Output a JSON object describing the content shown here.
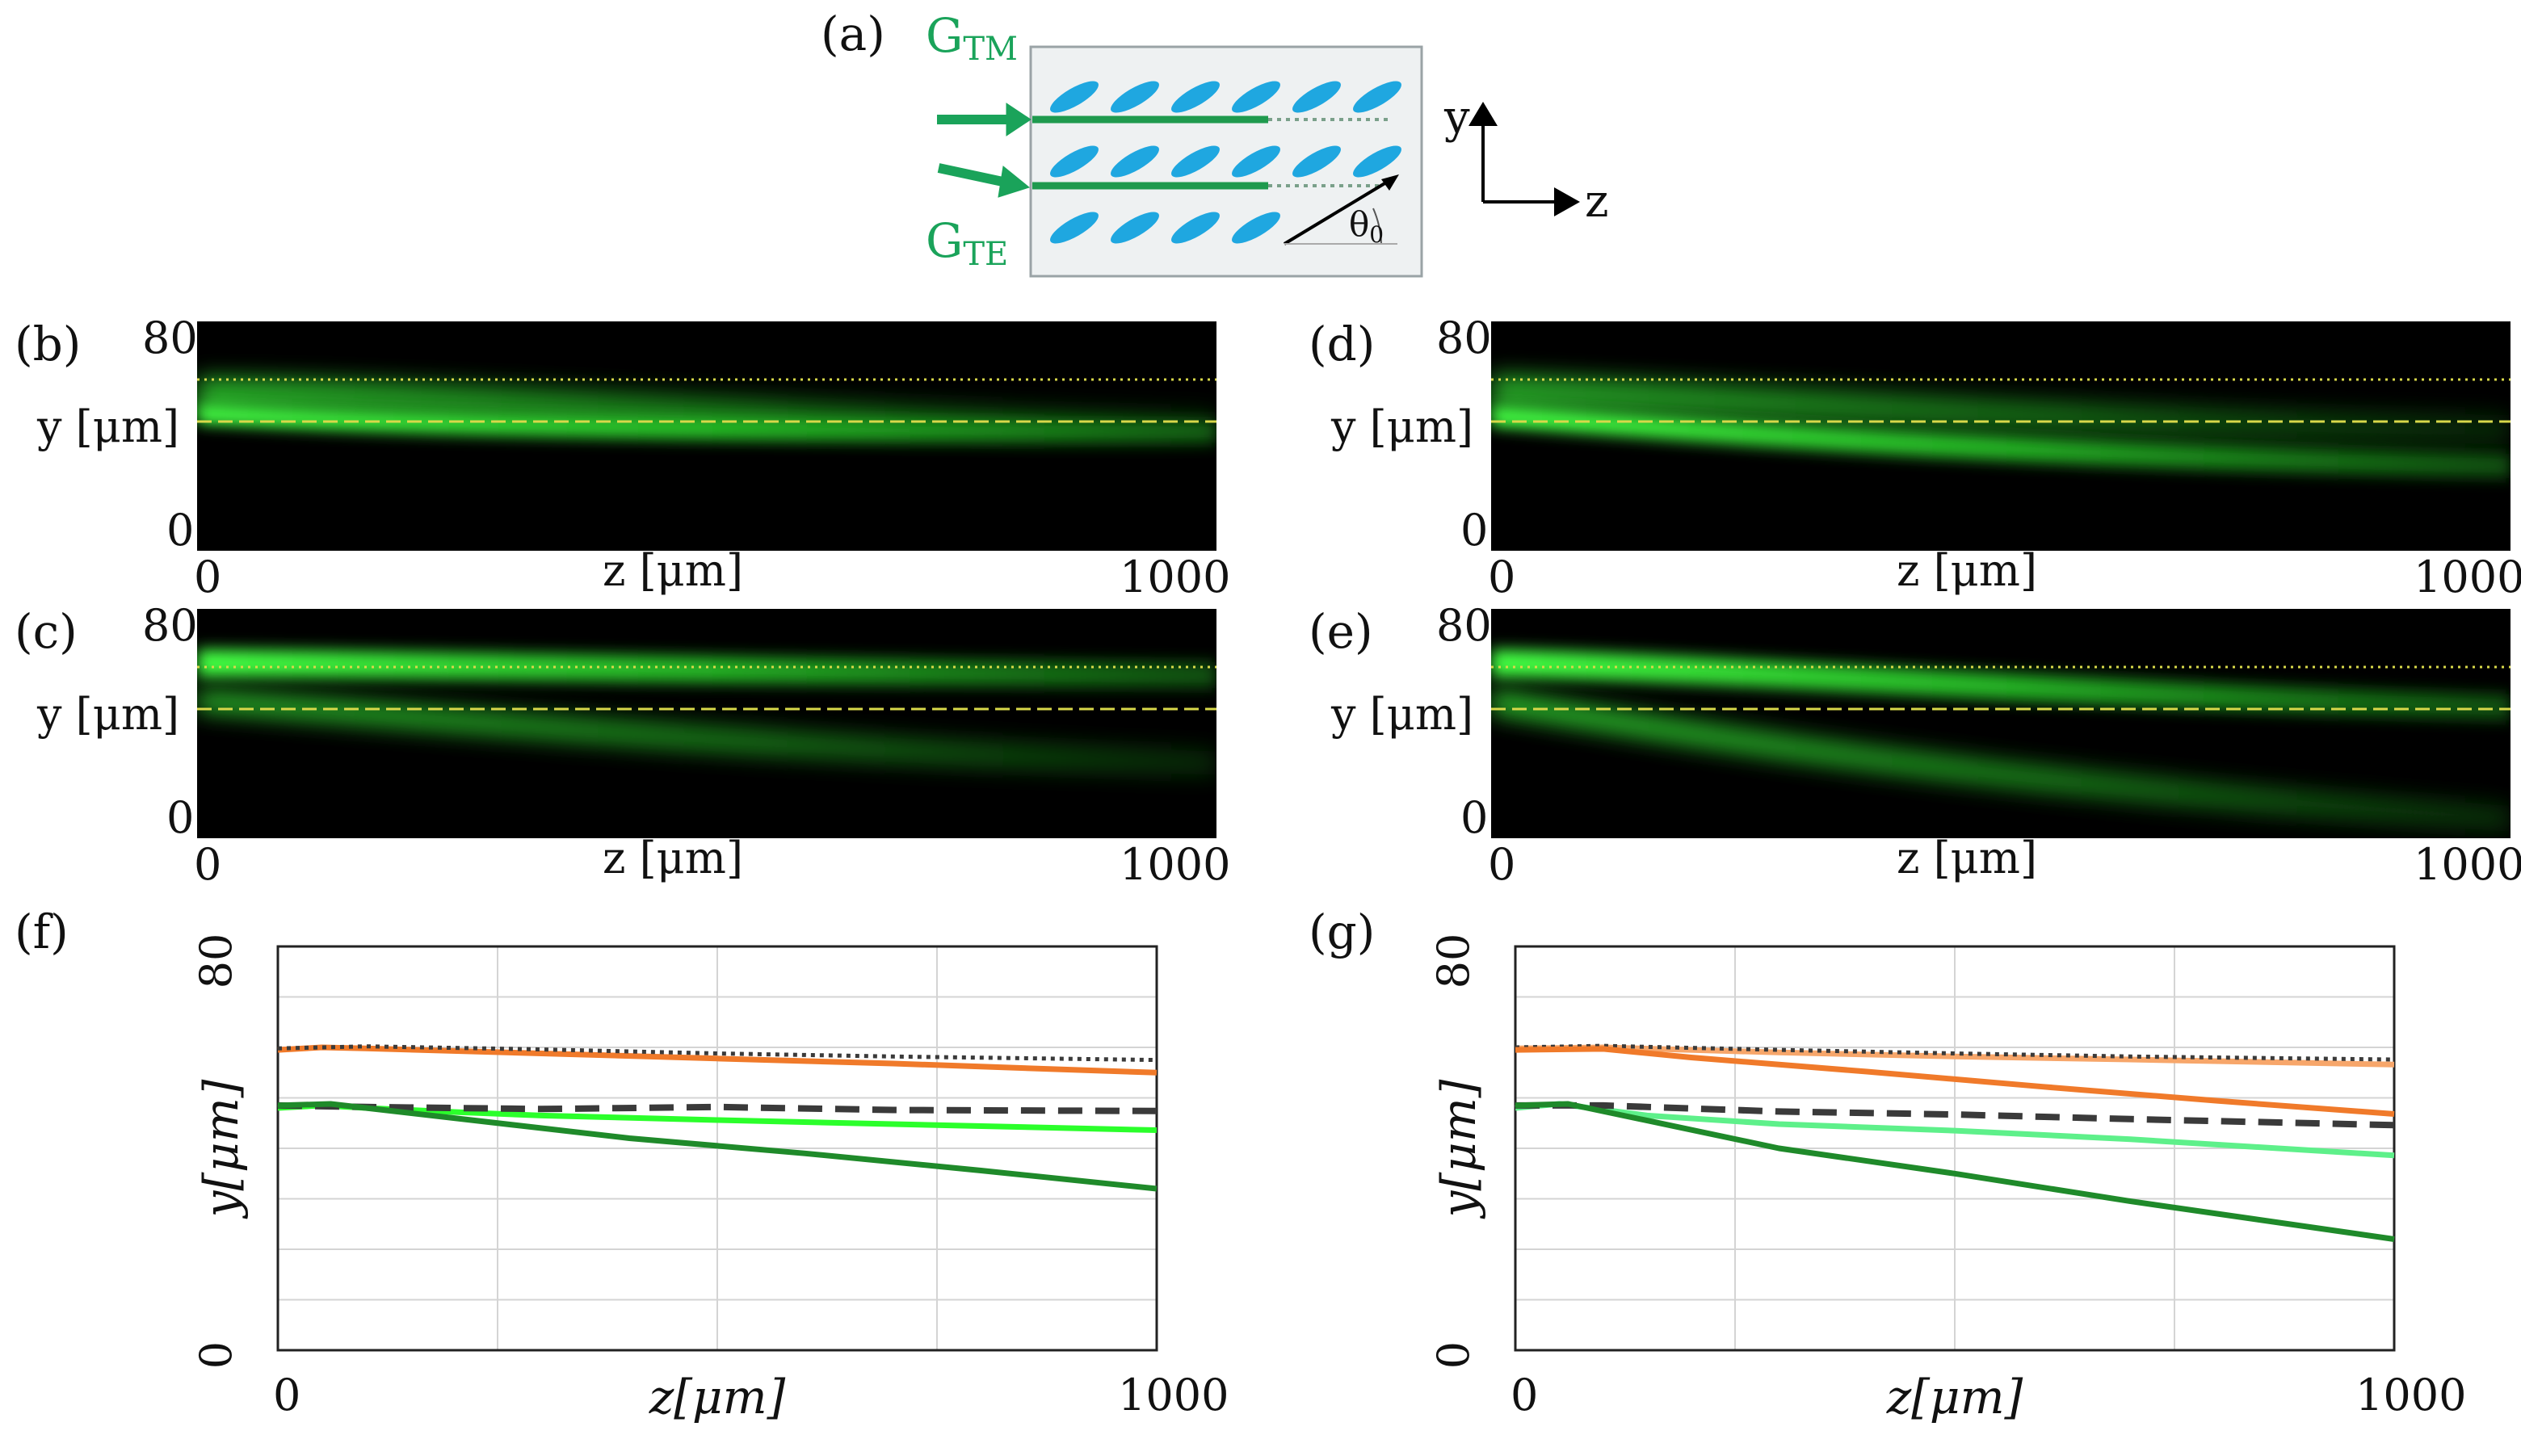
{
  "schematic": {
    "label": "(a)",
    "g_tm": {
      "main": "G",
      "sub": "TM"
    },
    "g_te": {
      "main": "G",
      "sub": "TE"
    },
    "axis_y": "y",
    "axis_z": "z",
    "angle": {
      "main": "θ",
      "sub": "0"
    },
    "accent_green": "#1aa35a",
    "lc_blue": "#1fa7e0"
  },
  "colors": {
    "beam": "#3dff3d",
    "guide": "#d8d84a",
    "tm_orange": "#f07a2a",
    "tm_orange_light": "#f7a66a",
    "te_dark_green": "#1f8a2a",
    "te_light_green": "#2bff2b",
    "te_light_green_g": "#5ef08a",
    "ref_dash": "#3a3a3a"
  },
  "heatmaps": [
    {
      "label": "(b)",
      "ymax": "80",
      "ymin": "0",
      "ylabel": "y [μm]",
      "xmin": "0",
      "xmax": "1000",
      "xlabel": "z [μm]"
    },
    {
      "label": "(c)",
      "ymax": "80",
      "ymin": "0",
      "ylabel": "y [μm]",
      "xmin": "0",
      "xmax": "1000",
      "xlabel": "z [μm]"
    },
    {
      "label": "(d)",
      "ymax": "80",
      "ymin": "0",
      "ylabel": "y [μm]",
      "xmin": "0",
      "xmax": "1000",
      "xlabel": "z [μm]"
    },
    {
      "label": "(e)",
      "ymax": "80",
      "ymin": "0",
      "ylabel": "y [μm]",
      "xmin": "0",
      "xmax": "1000",
      "xlabel": "z [μm]"
    }
  ],
  "chart_data": [
    {
      "type": "line",
      "label": "(f)",
      "xlabel": "z[μm]",
      "ylabel": "y[μm]",
      "xlim": [
        0,
        1000
      ],
      "ylim": [
        0,
        80
      ],
      "xticks": [
        "0",
        "1000"
      ],
      "yticks": [
        "0",
        "80"
      ],
      "grid": true,
      "series": [
        {
          "name": "TM trajectory",
          "style": "orange",
          "x": [
            0,
            50,
            100,
            300,
            500,
            700,
            1000
          ],
          "y": [
            59.5,
            60,
            59.8,
            58.8,
            57.8,
            56.8,
            55
          ]
        },
        {
          "name": "TM waveguide reference",
          "style": "dotted",
          "x": [
            0,
            100,
            300,
            500,
            700,
            1000
          ],
          "y": [
            59.8,
            60.2,
            59.6,
            58.8,
            58.2,
            57.5
          ]
        },
        {
          "name": "TE trajectory (light)",
          "style": "lightgreen",
          "x": [
            0,
            50,
            100,
            200,
            300,
            500,
            700,
            1000
          ],
          "y": [
            48,
            48.5,
            48,
            47.2,
            46.5,
            45.6,
            44.8,
            43.6
          ]
        },
        {
          "name": "TE waveguide reference",
          "style": "dashed",
          "x": [
            0,
            100,
            300,
            500,
            700,
            1000
          ],
          "y": [
            48.5,
            48.2,
            47.8,
            48.2,
            47.6,
            47.4
          ]
        },
        {
          "name": "TE trajectory (dark)",
          "style": "darkgreen",
          "x": [
            0,
            60,
            200,
            400,
            600,
            800,
            1000
          ],
          "y": [
            48.5,
            48.8,
            46,
            42,
            39,
            35.6,
            32
          ]
        }
      ]
    },
    {
      "type": "line",
      "label": "(g)",
      "xlabel": "z[μm]",
      "ylabel": "y[μm]",
      "xlim": [
        0,
        1000
      ],
      "ylim": [
        0,
        80
      ],
      "xticks": [
        "0",
        "1000"
      ],
      "yticks": [
        "0",
        "80"
      ],
      "grid": true,
      "series": [
        {
          "name": "TM trajectory (light)",
          "style": "orangelight",
          "x": [
            0,
            100,
            300,
            500,
            700,
            1000
          ],
          "y": [
            59.8,
            60,
            59,
            58.2,
            57.6,
            56.6
          ]
        },
        {
          "name": "TM waveguide reference",
          "style": "dotted",
          "x": [
            0,
            100,
            300,
            500,
            700,
            1000
          ],
          "y": [
            60,
            60.3,
            59.5,
            58.8,
            58.2,
            57.6
          ]
        },
        {
          "name": "TM trajectory",
          "style": "orange",
          "x": [
            0,
            100,
            200,
            400,
            600,
            800,
            1000
          ],
          "y": [
            59.5,
            59.7,
            58,
            55.2,
            52.2,
            49.4,
            46.8
          ]
        },
        {
          "name": "TE trajectory (light)",
          "style": "lightgreen_g",
          "x": [
            0,
            50,
            150,
            300,
            500,
            700,
            1000
          ],
          "y": [
            48,
            48.8,
            46.5,
            44.8,
            43.5,
            41.8,
            38.6
          ]
        },
        {
          "name": "TE waveguide reference",
          "style": "dashed",
          "x": [
            0,
            100,
            300,
            500,
            700,
            1000
          ],
          "y": [
            48.5,
            48.5,
            47.3,
            46.7,
            45.8,
            44.6
          ]
        },
        {
          "name": "TE trajectory (dark)",
          "style": "darkgreen",
          "x": [
            0,
            60,
            150,
            300,
            500,
            700,
            1000
          ],
          "y": [
            48.5,
            48.8,
            45.5,
            40,
            35,
            29.5,
            22
          ]
        }
      ]
    }
  ]
}
